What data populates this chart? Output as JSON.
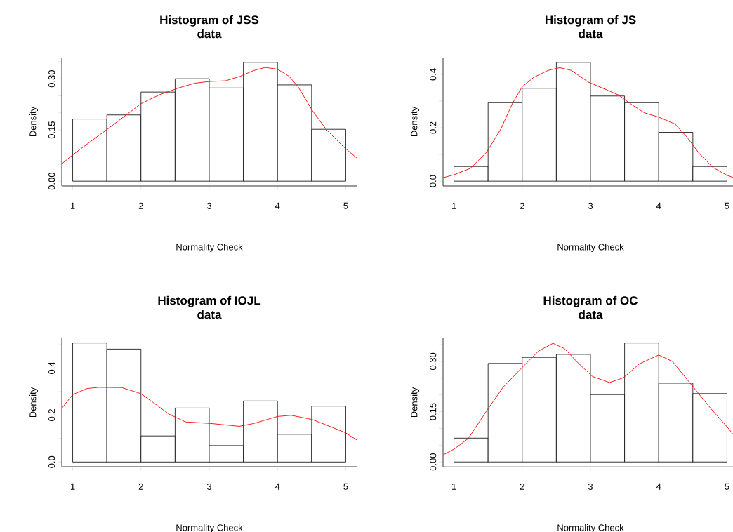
{
  "chart_data": [
    {
      "type": "histogram",
      "title": "Histogram of JSS",
      "subtitle": "data",
      "xlabel": "Normality Check",
      "ylabel": "Density",
      "bins": [
        1,
        1.5,
        2,
        2.5,
        3,
        3.5,
        4,
        4.5,
        5
      ],
      "values": [
        0.182,
        0.194,
        0.261,
        0.3,
        0.273,
        0.348,
        0.282,
        0.152
      ],
      "series": [
        {
          "type": "line",
          "color": "#ff0000",
          "x": [
            0.84,
            1.0,
            1.24,
            1.52,
            1.79,
            2.0,
            2.27,
            2.55,
            2.79,
            3.0,
            3.24,
            3.45,
            3.65,
            3.82,
            4.0,
            4.17,
            4.3,
            4.51,
            4.72,
            4.96,
            5.16
          ],
          "values": [
            0.051,
            0.077,
            0.113,
            0.154,
            0.195,
            0.227,
            0.253,
            0.273,
            0.287,
            0.292,
            0.294,
            0.307,
            0.324,
            0.333,
            0.328,
            0.307,
            0.277,
            0.207,
            0.15,
            0.102,
            0.068
          ]
        }
      ],
      "xlim": [
        0.84,
        5.16
      ],
      "ylim": [
        -0.014,
        0.362
      ],
      "xticks": [
        1,
        2,
        3,
        4,
        5
      ],
      "yticks": [
        {
          "value": 0,
          "label": "0.00"
        },
        {
          "value": 0.05,
          "label": null
        },
        {
          "value": 0.1,
          "label": null
        },
        {
          "value": 0.15,
          "label": "0.15"
        },
        {
          "value": 0.2,
          "label": null
        },
        {
          "value": 0.25,
          "label": null
        },
        {
          "value": 0.3,
          "label": "0.30"
        },
        {
          "value": 0.35,
          "label": null
        }
      ]
    },
    {
      "type": "histogram",
      "title": "Histogram of JS",
      "subtitle": "data",
      "xlabel": "Normality Check",
      "ylabel": "Density",
      "bins": [
        1,
        1.5,
        2,
        2.5,
        3,
        3.5,
        4,
        4.5,
        5
      ],
      "values": [
        0.055,
        0.294,
        0.348,
        0.445,
        0.319,
        0.294,
        0.183,
        0.055
      ],
      "series": [
        {
          "type": "line",
          "color": "#ff0000",
          "x": [
            0.84,
            1.0,
            1.24,
            1.48,
            1.69,
            1.86,
            2.0,
            2.17,
            2.38,
            2.55,
            2.72,
            2.97,
            3.21,
            3.41,
            3.62,
            3.79,
            4.0,
            4.24,
            4.41,
            4.59,
            4.79,
            5.0,
            5.1
          ],
          "values": [
            0.013,
            0.024,
            0.048,
            0.109,
            0.197,
            0.293,
            0.354,
            0.389,
            0.415,
            0.425,
            0.415,
            0.371,
            0.345,
            0.323,
            0.284,
            0.256,
            0.24,
            0.214,
            0.166,
            0.105,
            0.052,
            0.022,
            0.013
          ]
        }
      ],
      "xlim": [
        0.84,
        5.16
      ],
      "ylim": [
        -0.018,
        0.463
      ],
      "xticks": [
        1,
        2,
        3,
        4,
        5
      ],
      "yticks": [
        {
          "value": 0,
          "label": "0.0"
        },
        {
          "value": 0.1,
          "label": null
        },
        {
          "value": 0.2,
          "label": "0.2"
        },
        {
          "value": 0.3,
          "label": null
        },
        {
          "value": 0.4,
          "label": "0.4"
        }
      ]
    },
    {
      "type": "histogram",
      "title": "Histogram of IOJL",
      "subtitle": "data",
      "xlabel": "Normality Check",
      "ylabel": "Density",
      "bins": [
        1,
        1.5,
        2,
        2.5,
        3,
        3.5,
        4,
        4.5,
        5
      ],
      "values": [
        0.507,
        0.481,
        0.111,
        0.23,
        0.07,
        0.26,
        0.118,
        0.238
      ],
      "series": [
        {
          "type": "line",
          "color": "#ff0000",
          "x": [
            0.84,
            1.0,
            1.21,
            1.38,
            1.72,
            2.0,
            2.2,
            2.41,
            2.65,
            3.03,
            3.44,
            3.65,
            4.0,
            4.2,
            4.51,
            4.79,
            5.0,
            5.16
          ],
          "values": [
            0.229,
            0.287,
            0.313,
            0.318,
            0.317,
            0.291,
            0.249,
            0.204,
            0.171,
            0.164,
            0.152,
            0.164,
            0.194,
            0.199,
            0.181,
            0.149,
            0.124,
            0.094
          ]
        }
      ],
      "xlim": [
        0.84,
        5.16
      ],
      "ylim": [
        -0.02,
        0.527
      ],
      "xticks": [
        1,
        2,
        3,
        4,
        5
      ],
      "yticks": [
        {
          "value": 0,
          "label": "0.0"
        },
        {
          "value": 0.1,
          "label": null
        },
        {
          "value": 0.2,
          "label": "0.2"
        },
        {
          "value": 0.3,
          "label": null
        },
        {
          "value": 0.4,
          "label": "0.4"
        },
        {
          "value": 0.5,
          "label": null
        }
      ]
    },
    {
      "type": "histogram",
      "title": "Histogram of OC",
      "subtitle": "data",
      "xlabel": "Normality Check",
      "ylabel": "Density",
      "bins": [
        1,
        1.5,
        2,
        2.5,
        3,
        3.5,
        4,
        4.5,
        5
      ],
      "values": [
        0.071,
        0.294,
        0.312,
        0.321,
        0.201,
        0.355,
        0.235,
        0.204
      ],
      "series": [
        {
          "type": "line",
          "color": "#ff0000",
          "x": [
            0.84,
            1.0,
            1.21,
            1.48,
            1.72,
            2.0,
            2.24,
            2.45,
            2.62,
            2.83,
            3.03,
            3.28,
            3.48,
            3.72,
            4.0,
            4.2,
            4.48,
            4.76,
            5.0,
            5.1
          ],
          "values": [
            0.021,
            0.038,
            0.07,
            0.153,
            0.223,
            0.282,
            0.331,
            0.354,
            0.338,
            0.293,
            0.255,
            0.237,
            0.251,
            0.293,
            0.319,
            0.3,
            0.23,
            0.16,
            0.105,
            0.08
          ]
        }
      ],
      "xlim": [
        0.84,
        5.16
      ],
      "ylim": [
        -0.0142,
        0.369
      ],
      "xticks": [
        1,
        2,
        3,
        4,
        5
      ],
      "yticks": [
        {
          "value": 0,
          "label": "0.00"
        },
        {
          "value": 0.05,
          "label": null
        },
        {
          "value": 0.1,
          "label": null
        },
        {
          "value": 0.15,
          "label": "0.15"
        },
        {
          "value": 0.2,
          "label": null
        },
        {
          "value": 0.25,
          "label": null
        },
        {
          "value": 0.3,
          "label": "0.30"
        },
        {
          "value": 0.35,
          "label": null
        }
      ]
    }
  ]
}
